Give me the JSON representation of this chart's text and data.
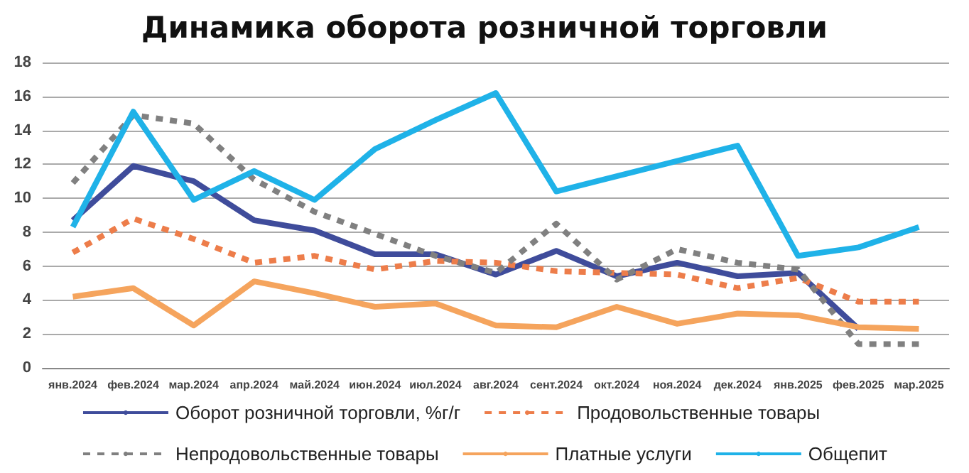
{
  "chart_data": {
    "type": "line",
    "title": "Динамика оборота розничной торговли",
    "categories": [
      "янв.2024",
      "фев.2024",
      "мар.2024",
      "апр.2024",
      "май.2024",
      "июн.2024",
      "июл.2024",
      "авг.2024",
      "сент.2024",
      "окт.2024",
      "ноя.2024",
      "дек.2024",
      "янв.2025",
      "фев.2025",
      "мар.2025"
    ],
    "series": [
      {
        "name": "Оборот розничной торговли, %г/г",
        "color": "#3f4c9b",
        "line_style": "solid",
        "values": [
          8.7,
          11.9,
          11.0,
          8.7,
          8.1,
          6.7,
          6.7,
          5.5,
          6.9,
          5.4,
          6.2,
          5.4,
          5.6,
          2.3,
          null
        ]
      },
      {
        "name": "Продовольственные товары",
        "color": "#ed7d4a",
        "line_style": "dashed",
        "values": [
          6.8,
          8.8,
          7.6,
          6.2,
          6.6,
          5.8,
          6.3,
          6.2,
          5.7,
          5.6,
          5.5,
          4.7,
          5.3,
          3.9,
          3.9
        ]
      },
      {
        "name": "Непродовольственные товары",
        "color": "#808080",
        "line_style": "dashed",
        "values": [
          10.9,
          14.9,
          14.4,
          11.1,
          9.2,
          7.9,
          6.6,
          5.6,
          8.5,
          5.2,
          7.0,
          6.2,
          5.8,
          1.4,
          1.4
        ]
      },
      {
        "name": "Платные услуги",
        "color": "#f5a45d",
        "line_style": "solid",
        "values": [
          4.2,
          4.7,
          2.5,
          5.1,
          4.4,
          3.6,
          3.8,
          2.5,
          2.4,
          3.6,
          2.6,
          3.2,
          3.1,
          2.4,
          2.3
        ]
      },
      {
        "name": "Общепит",
        "color": "#1fb2e8",
        "line_style": "solid",
        "values": [
          8.3,
          15.1,
          9.9,
          11.6,
          9.9,
          12.9,
          14.6,
          16.2,
          10.4,
          11.3,
          12.2,
          13.1,
          6.6,
          7.1,
          8.3
        ]
      }
    ],
    "ylim": [
      0,
      18
    ],
    "yticks": [
      0,
      2,
      4,
      6,
      8,
      10,
      12,
      14,
      16,
      18
    ],
    "grid": "y",
    "legend": "bottom",
    "marker": "none"
  }
}
